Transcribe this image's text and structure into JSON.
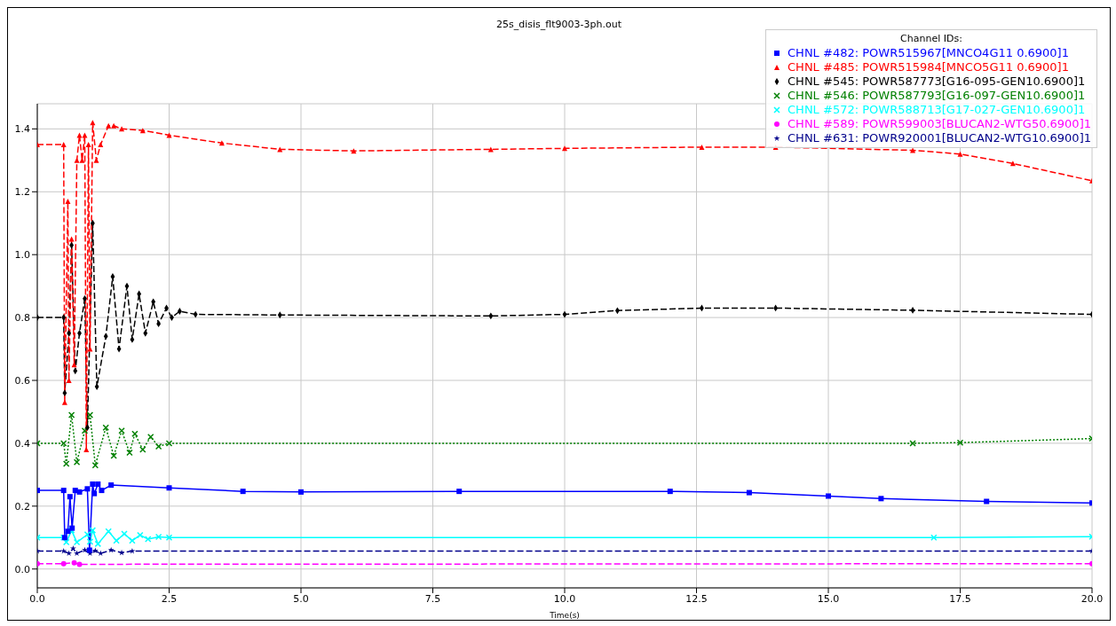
{
  "chart_data": {
    "type": "line",
    "title": "25s_disis_flt9003-3ph.out",
    "xlabel": "Time(s)",
    "legend_title": "Channel IDs:",
    "legend": "top right",
    "grid": true,
    "xlim": [
      0,
      20
    ],
    "xticks": [
      {
        "value": 0,
        "label": "0.0"
      },
      {
        "value": 2.5,
        "label": "2.5"
      },
      {
        "value": 5,
        "label": "5.0"
      },
      {
        "value": 7.5,
        "label": "7.5"
      },
      {
        "value": 10,
        "label": "10.0"
      },
      {
        "value": 12.5,
        "label": "12.5"
      },
      {
        "value": 15,
        "label": "15.0"
      },
      {
        "value": 17.5,
        "label": "17.5"
      },
      {
        "value": 20,
        "label": "20.0"
      }
    ],
    "ylim": [
      -0.06,
      1.48
    ],
    "yticks": [
      {
        "value": 0,
        "label": "0.0"
      },
      {
        "value": 0.2,
        "label": "0.2"
      },
      {
        "value": 0.4,
        "label": "0.4"
      },
      {
        "value": 0.6,
        "label": "0.6"
      },
      {
        "value": 0.8,
        "label": "0.8"
      },
      {
        "value": 1.0,
        "label": "1.0"
      },
      {
        "value": 1.2,
        "label": "1.2"
      },
      {
        "value": 1.4,
        "label": "1.4"
      }
    ],
    "series": [
      {
        "name": "CHNL #482: POWR515967[MNCO4G11 0.6900]1",
        "color": "#0000ff",
        "marker": "square",
        "line_style": "solid",
        "x": [
          0,
          0.5,
          0.52,
          0.58,
          0.62,
          0.66,
          0.72,
          0.8,
          0.95,
          0.99,
          1.05,
          1.08,
          1.15,
          1.22,
          1.4,
          2.5,
          3.9,
          5,
          8,
          12,
          13.5,
          15,
          16,
          18,
          20
        ],
        "values": [
          0.25,
          0.25,
          0.1,
          0.12,
          0.23,
          0.13,
          0.25,
          0.245,
          0.255,
          0.06,
          0.27,
          0.24,
          0.27,
          0.25,
          0.267,
          0.258,
          0.247,
          0.245,
          0.247,
          0.247,
          0.243,
          0.232,
          0.224,
          0.215,
          0.21
        ]
      },
      {
        "name": "CHNL #485: POWR515984[MNCO5G11 0.6900]1",
        "color": "#ff0000",
        "marker": "triangle",
        "line_style": "dashed",
        "x": [
          0,
          0.5,
          0.52,
          0.58,
          0.6,
          0.65,
          0.7,
          0.75,
          0.8,
          0.85,
          0.9,
          0.93,
          0.97,
          1.0,
          1.05,
          1.12,
          1.2,
          1.35,
          1.45,
          1.6,
          2,
          2.5,
          3.5,
          4.6,
          6,
          8.6,
          10,
          12.6,
          14,
          16.6,
          17.5,
          18.5,
          20
        ],
        "values": [
          1.35,
          1.35,
          0.53,
          1.17,
          0.6,
          1.05,
          0.65,
          1.3,
          1.38,
          1.3,
          1.38,
          0.38,
          1.35,
          0.7,
          1.42,
          1.3,
          1.35,
          1.41,
          1.41,
          1.4,
          1.395,
          1.38,
          1.355,
          1.335,
          1.33,
          1.335,
          1.338,
          1.342,
          1.342,
          1.332,
          1.32,
          1.29,
          1.235
        ]
      },
      {
        "name": "CHNL #545: POWR587773[G16-095-GEN10.6900]1",
        "color": "#000000",
        "marker": "diamond",
        "line_style": "dashed",
        "x": [
          0,
          0.5,
          0.52,
          0.6,
          0.65,
          0.72,
          0.8,
          0.9,
          0.95,
          1.05,
          1.13,
          1.3,
          1.43,
          1.55,
          1.7,
          1.8,
          1.93,
          2.05,
          2.2,
          2.3,
          2.45,
          2.55,
          2.7,
          3,
          4.6,
          8.6,
          10,
          11,
          12.6,
          14,
          16.6,
          20
        ],
        "values": [
          0.8,
          0.8,
          0.56,
          0.75,
          1.03,
          0.63,
          0.75,
          0.86,
          0.45,
          1.1,
          0.58,
          0.74,
          0.93,
          0.7,
          0.9,
          0.73,
          0.875,
          0.75,
          0.85,
          0.78,
          0.83,
          0.8,
          0.82,
          0.81,
          0.808,
          0.805,
          0.81,
          0.822,
          0.83,
          0.83,
          0.823,
          0.81
        ]
      },
      {
        "name": "CHNL #546: POWR587793[G16-097-GEN10.6900]1",
        "color": "#008000",
        "marker": "cross",
        "line_style": "dotted",
        "x": [
          0,
          0.5,
          0.55,
          0.65,
          0.75,
          0.9,
          1,
          1.1,
          1.3,
          1.45,
          1.6,
          1.75,
          1.85,
          2,
          2.15,
          2.3,
          2.5,
          16.6,
          17.5,
          20
        ],
        "values": [
          0.4,
          0.4,
          0.335,
          0.49,
          0.34,
          0.44,
          0.49,
          0.33,
          0.45,
          0.36,
          0.44,
          0.37,
          0.43,
          0.38,
          0.42,
          0.39,
          0.4,
          0.4,
          0.402,
          0.415
        ]
      },
      {
        "name": "CHNL #572: POWR588713[G17-027-GEN10.6900]1",
        "color": "#00ffff",
        "marker": "cross",
        "line_style": "solid",
        "x": [
          0,
          0.5,
          0.55,
          0.65,
          0.75,
          0.95,
          1,
          1.05,
          1.15,
          1.35,
          1.5,
          1.65,
          1.8,
          1.95,
          2.1,
          2.3,
          2.5,
          17,
          20
        ],
        "values": [
          0.1,
          0.1,
          0.085,
          0.123,
          0.085,
          0.11,
          0.087,
          0.123,
          0.08,
          0.12,
          0.09,
          0.112,
          0.09,
          0.108,
          0.095,
          0.102,
          0.1,
          0.1,
          0.103
        ]
      },
      {
        "name": "CHNL #589: POWR599003[BLUCAN2-WTG50.6900]1",
        "color": "#ff00ff",
        "marker": "circle",
        "line_style": "dashed",
        "x": [
          0,
          0.5,
          0.7,
          0.8,
          20
        ],
        "values": [
          0.017,
          0.017,
          0.02,
          0.015,
          0.017
        ]
      },
      {
        "name": "CHNL #631: POWR920001[BLUCAN2-WTG10.6900]1",
        "color": "#00008b",
        "marker": "star",
        "line_style": "dashed",
        "x": [
          0,
          0.5,
          0.6,
          0.68,
          0.75,
          0.9,
          1,
          1.1,
          1.2,
          1.4,
          1.6,
          1.8,
          20
        ],
        "values": [
          0.057,
          0.057,
          0.05,
          0.065,
          0.05,
          0.06,
          0.05,
          0.058,
          0.05,
          0.06,
          0.052,
          0.057,
          0.057
        ]
      }
    ]
  }
}
